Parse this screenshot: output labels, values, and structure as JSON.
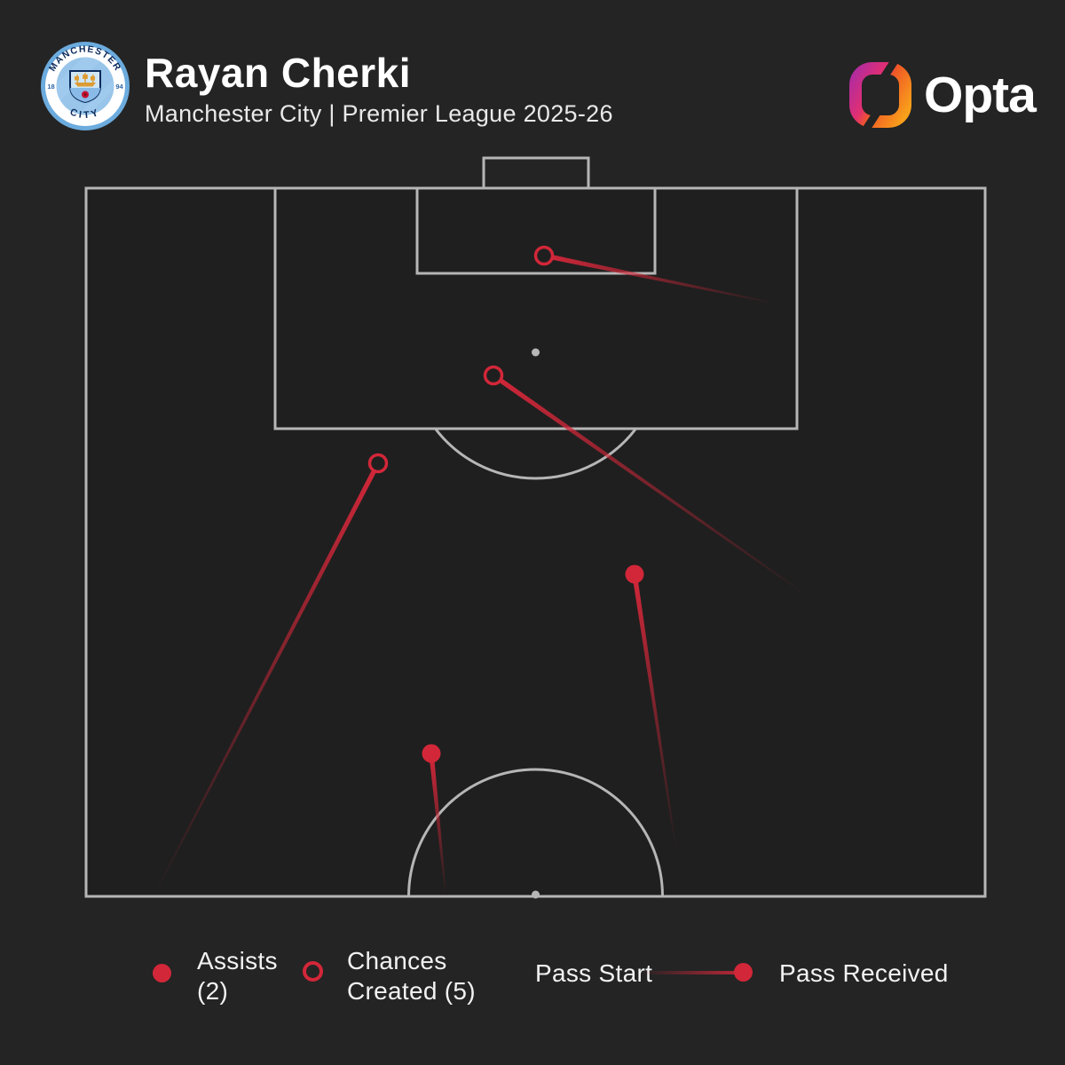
{
  "header": {
    "title": "Rayan Cherki",
    "subtitle": "Manchester City | Premier League 2025-26",
    "badge": {
      "club": "Manchester City",
      "ring_top": "MANCHESTER",
      "ring_bottom": "CITY",
      "year_left": "18",
      "year_right": "94"
    }
  },
  "brand": {
    "wordmark": "Opta"
  },
  "legend": {
    "assists": {
      "line1": "Assists",
      "line2": "(2)"
    },
    "chances": {
      "line1": "Chances",
      "line2": "Created (5)"
    },
    "pass_start_label": "Pass Start",
    "pass_received_label": "Pass Received"
  },
  "colors": {
    "accent_red": "#d22739",
    "pitch_line": "#b6b6b6",
    "background": "#242424",
    "pitch_background": "#1f1f1f",
    "city_blue": "#6cabdd",
    "city_inner_blue": "#98c5e9",
    "city_navy": "#0b2a5b",
    "opta_purple": "#a62ba8",
    "opta_orange": "#f9a01b"
  },
  "chart_data": {
    "type": "scatter",
    "title": "Rayan Cherki — assists and chances created map",
    "subtitle": "Manchester City | Premier League 2025-26",
    "coordinate_system": "screen pixels on 1200x1200 image; attacking half pitch, goal at top; pitch rect x 97-1110, y 212-1010",
    "counts": {
      "assists": 2,
      "chances_created": 5
    },
    "legend_note": "line fades at pass start, marker drawn at pass received location",
    "passes": [
      {
        "kind": "chance_created",
        "marker": "open",
        "start": [
          870,
          341
        ],
        "received": [
          613,
          288
        ]
      },
      {
        "kind": "chance_created",
        "marker": "open",
        "start": [
          905,
          668
        ],
        "received": [
          556,
          423
        ]
      },
      {
        "kind": "chance_created",
        "marker": "open",
        "start": [
          178,
          1000
        ],
        "received": [
          426,
          522
        ]
      },
      {
        "kind": "assist",
        "marker": "filled",
        "start": [
          761,
          953
        ],
        "received": [
          715,
          647
        ]
      },
      {
        "kind": "assist",
        "marker": "filled",
        "start": [
          502,
          1006
        ],
        "received": [
          486,
          849
        ]
      }
    ]
  }
}
